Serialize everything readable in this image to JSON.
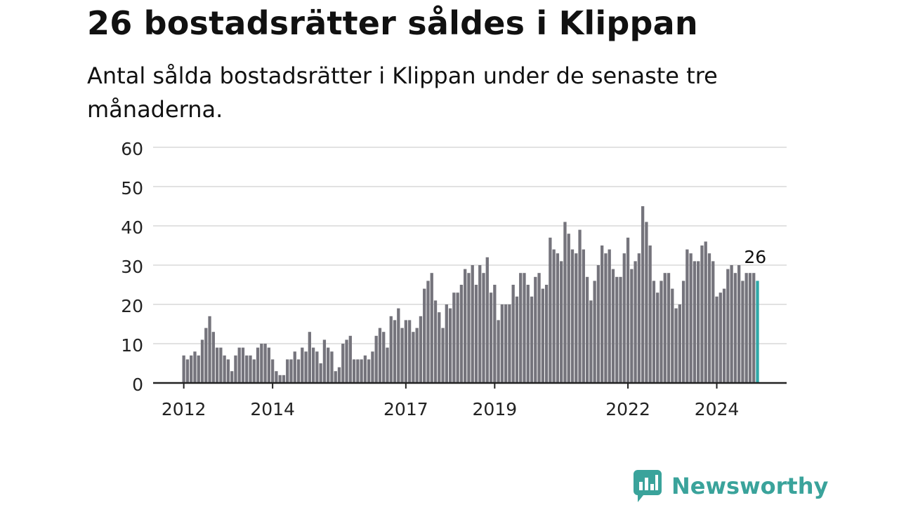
{
  "title": "26 bostadsrätter såldes i Klippan",
  "subtitle": "Antal sålda bostadsrätter i Klippan under de senaste tre månaderna.",
  "brand": {
    "name": "Newsworthy",
    "color": "#3aa39b",
    "icon": "newsworthy-logo-icon"
  },
  "colors": {
    "bar": "#75747c",
    "highlight": "#2fa8a8",
    "grid": "#d9d9d9",
    "axis": "#222222"
  },
  "chart_data": {
    "type": "bar",
    "title": "26 bostadsrätter såldes i Klippan",
    "xlabel": "",
    "ylabel": "",
    "ylim": [
      0,
      60
    ],
    "yticks": [
      "0",
      "10",
      "20",
      "30",
      "40",
      "50",
      "60"
    ],
    "xticks": [
      {
        "label": "2012",
        "index": 0
      },
      {
        "label": "2014",
        "index": 24
      },
      {
        "label": "2017",
        "index": 60
      },
      {
        "label": "2019",
        "index": 84
      },
      {
        "label": "2022",
        "index": 120
      },
      {
        "label": "2024",
        "index": 144
      }
    ],
    "grid": true,
    "annotation": {
      "label": "26",
      "index": 154
    },
    "series": [
      {
        "values": [
          7,
          6,
          7,
          8,
          7,
          11,
          14,
          17,
          13,
          9,
          9,
          7,
          6,
          3,
          7,
          9,
          9,
          7,
          7,
          6,
          9,
          10,
          10,
          9,
          6,
          3,
          2,
          2,
          6,
          6,
          8,
          6,
          9,
          8,
          13,
          9,
          8,
          5,
          11,
          9,
          8,
          3,
          4,
          10,
          11,
          12,
          6,
          6,
          6,
          7,
          6,
          8,
          12,
          14,
          13,
          9,
          17,
          16,
          19,
          14,
          16,
          16,
          13,
          14,
          17,
          24,
          26,
          28,
          21,
          18,
          14,
          20,
          19,
          23,
          23,
          25,
          29,
          28,
          30,
          25,
          30,
          28,
          32,
          23,
          25,
          16,
          20,
          20,
          20,
          25,
          22,
          28,
          28,
          25,
          22,
          27,
          28,
          24,
          25,
          37,
          34,
          33,
          31,
          41,
          38,
          34,
          33,
          39,
          34,
          27,
          21,
          26,
          30,
          35,
          33,
          34,
          29,
          27,
          27,
          33,
          37,
          29,
          31,
          33,
          45,
          41,
          35,
          26,
          23,
          26,
          28,
          28,
          24,
          19,
          20,
          26,
          34,
          33,
          31,
          31,
          35,
          36,
          33,
          31,
          22,
          23,
          24,
          29,
          30,
          28,
          30,
          26,
          28,
          28,
          28,
          26
        ]
      }
    ]
  }
}
